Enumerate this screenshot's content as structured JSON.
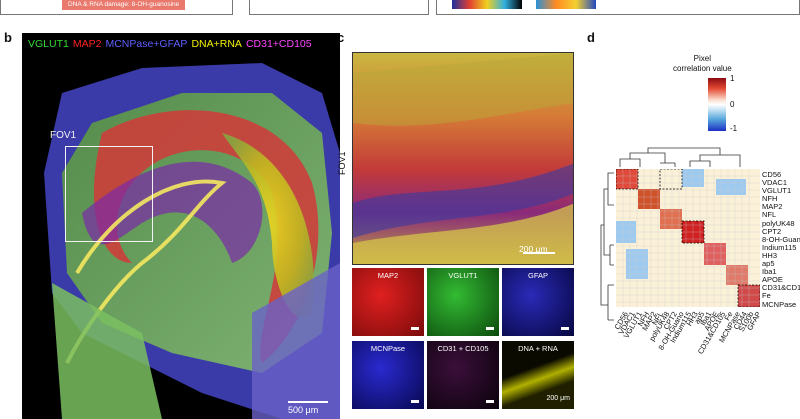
{
  "top_strip": {
    "damage_label": "DNA & RNA damage: 8-OH-guanosine"
  },
  "panel_b": {
    "letter": "b",
    "legend": [
      {
        "text": "VGLUT1",
        "color": "#33dd33"
      },
      {
        "text": "MAP2",
        "color": "#ff2222"
      },
      {
        "text": "MCNPase+GFAP",
        "color": "#3f3fff"
      },
      {
        "text": "DNA+RNA",
        "color": "#f2f200"
      },
      {
        "text": "CD31+CD105",
        "color": "#ff44ff"
      }
    ],
    "fov_label": "FOV1",
    "scale_text": "500 μm"
  },
  "panel_c": {
    "letter": "c",
    "fov_label": "FOV1",
    "scale_text": "200 μm",
    "tiles": [
      {
        "label": "MAP2",
        "color": "#d81010"
      },
      {
        "label": "VGLUT1",
        "color": "#1aa51a"
      },
      {
        "label": "GFAP",
        "color": "#1a1aa8"
      },
      {
        "label": "MCNPase",
        "color": "#2424c8"
      },
      {
        "label": "CD31 + CD105",
        "color": "#3a0f3a"
      },
      {
        "label": "DNA + RNA",
        "color": "#b8b800"
      }
    ],
    "tile_scale_text": "200 μm"
  },
  "panel_d": {
    "letter": "d",
    "colorbar_title_line1": "Pixel",
    "colorbar_title_line2": "correlation value",
    "ticks": [
      "1",
      "0",
      "-1"
    ],
    "markers": [
      "CD56",
      "VDAC1",
      "VGLUT1",
      "NFH",
      "MAP2",
      "NFL",
      "polyUK48",
      "CPT2",
      "8-OH-Guano",
      "Indium115",
      "HH3",
      "ap5",
      "Iba1",
      "APOE",
      "CD31&CD105",
      "Fe",
      "MCNPase",
      "CD44",
      "S100b",
      "GFAP"
    ]
  }
}
